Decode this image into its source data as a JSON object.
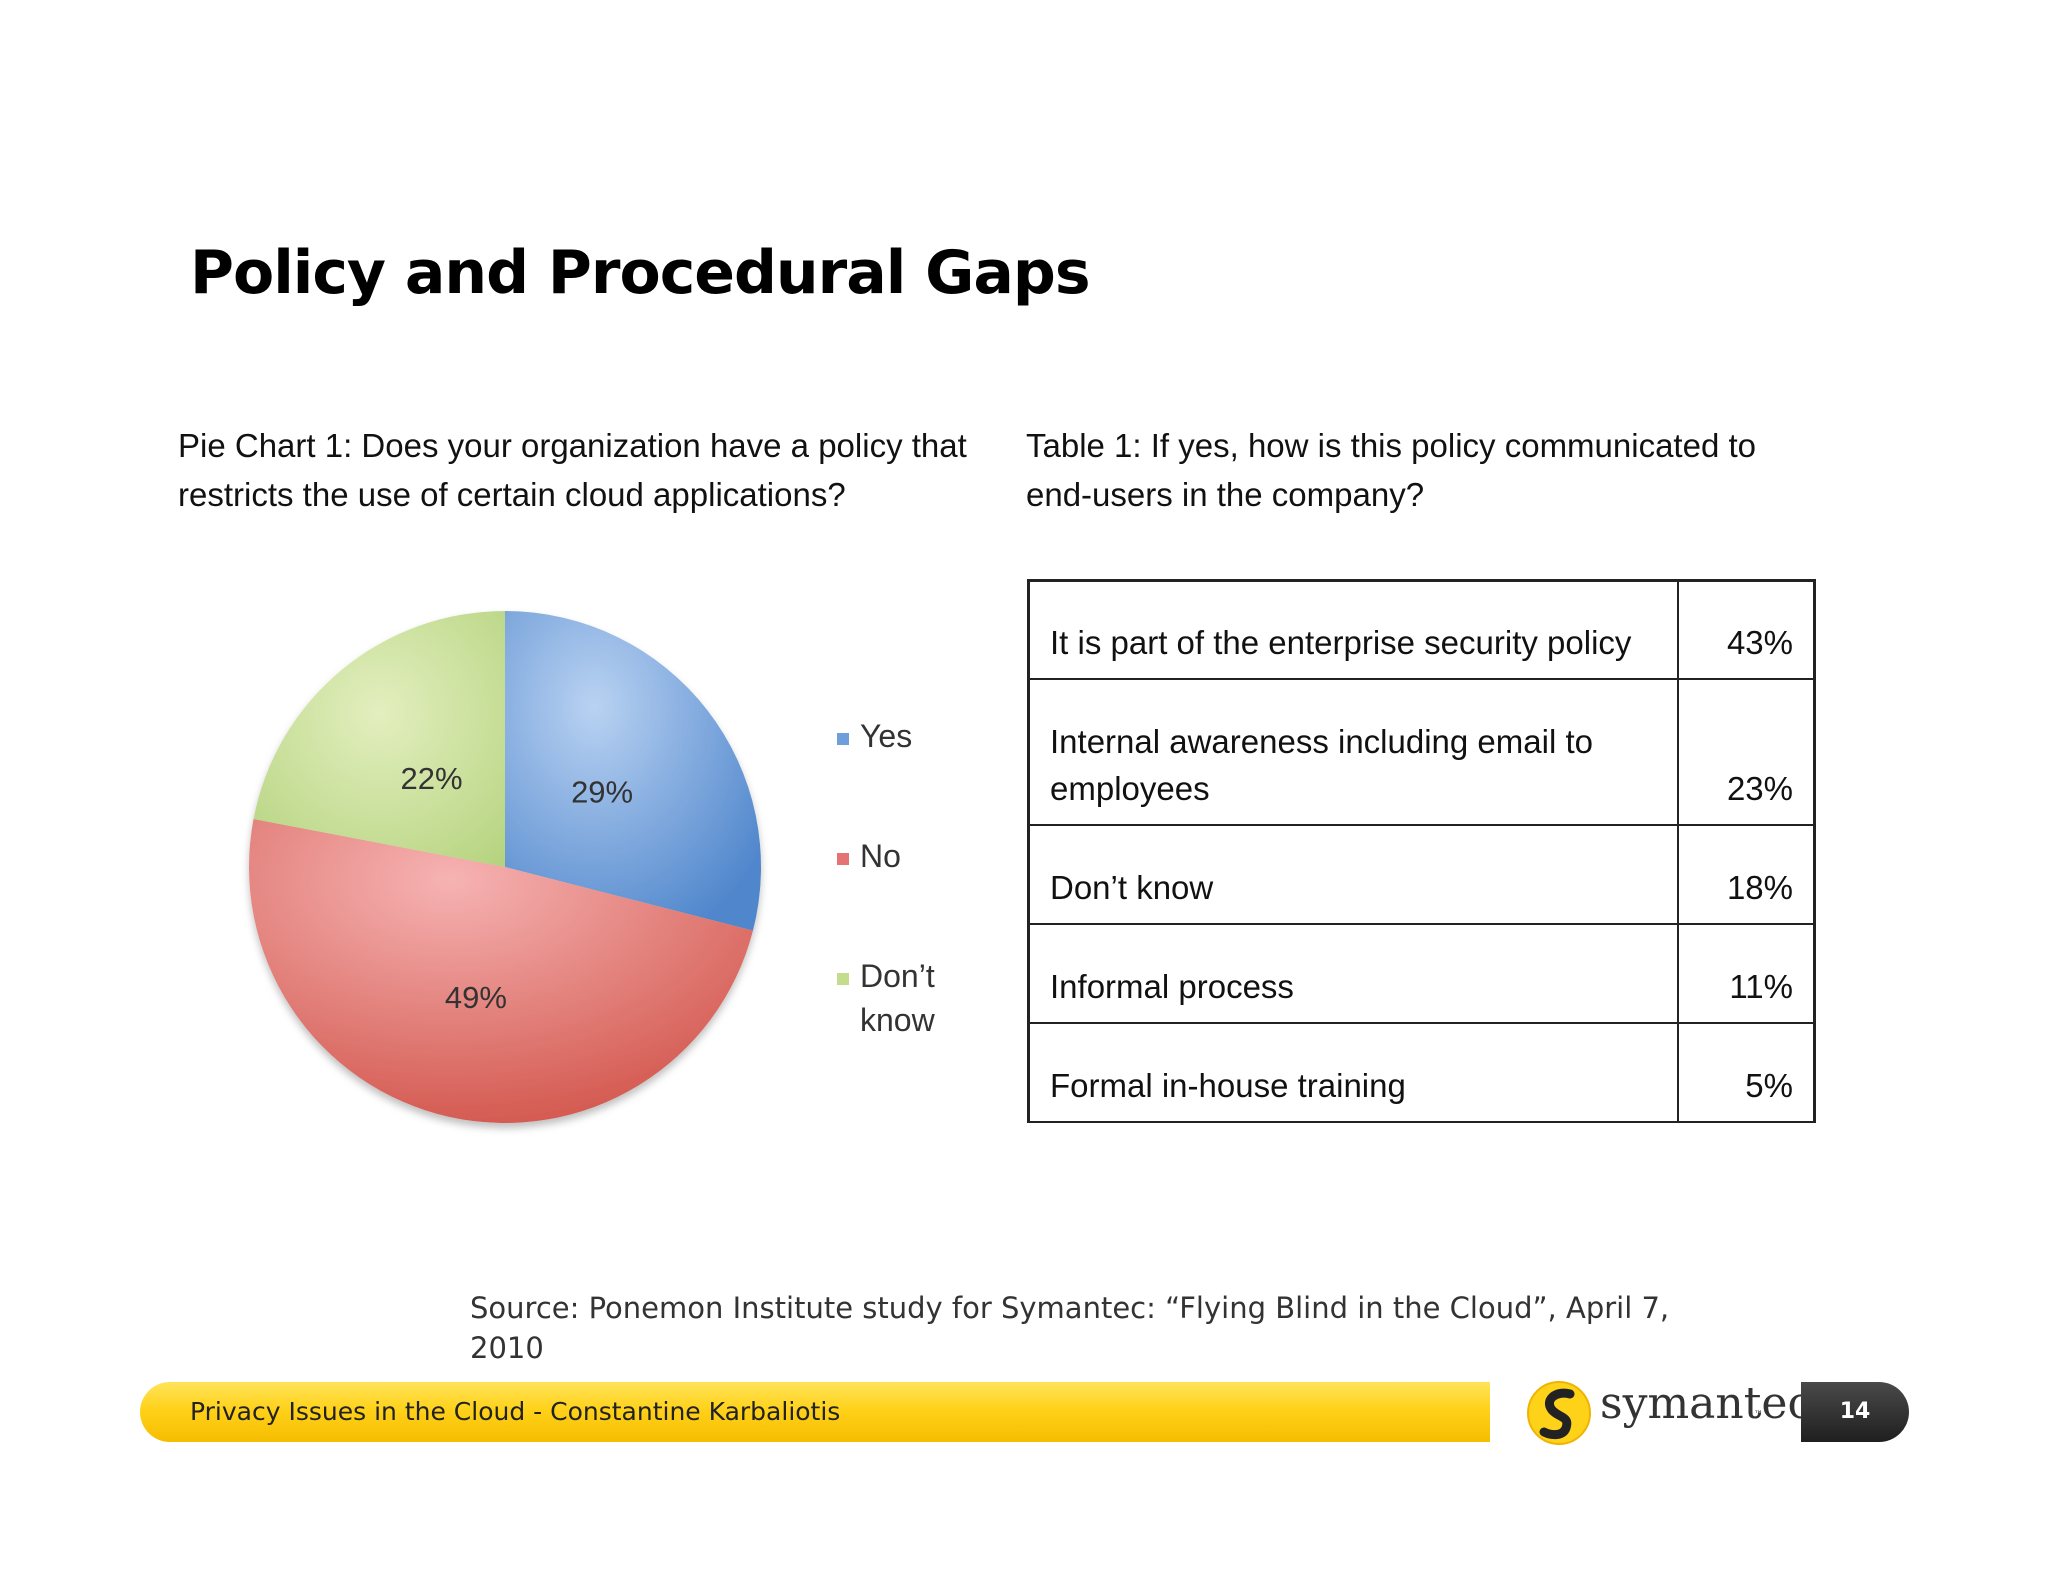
{
  "slide": {
    "title": "Policy and Procedural Gaps",
    "source_note": "Source: Ponemon Institute study for Symantec: “Flying Blind in the Cloud”, April 7, 2010",
    "footer_text": "Privacy Issues in the Cloud - Constantine Karbaliotis",
    "logo_text": "symantec.",
    "logo_tm": "™",
    "page_number": "14"
  },
  "pie": {
    "caption": "Pie Chart 1: Does your organization have a policy that restricts the use of certain cloud applications?"
  },
  "table": {
    "caption": "Table 1: If yes, how is this policy communicated to end-users in the company?",
    "rows": [
      {
        "label": "It is part of the enterprise security policy",
        "value": "43%"
      },
      {
        "label": "Internal awareness including email to employees",
        "value": "23%"
      },
      {
        "label": "Don’t know",
        "value": "18%"
      },
      {
        "label": "Informal process",
        "value": "11%"
      },
      {
        "label": "Formal in-house training",
        "value": "5%"
      }
    ]
  },
  "colors": {
    "yes": "#6e9fdb",
    "no": "#e57373",
    "dont_know": "#c3dd8c",
    "footer_yellow": "#ffd21a",
    "page_pill": "#2b2b2b"
  },
  "chart_data": [
    {
      "type": "pie",
      "title": "Pie Chart 1: Does your organization have a policy that restricts the use of certain cloud applications?",
      "categories": [
        "Yes",
        "No",
        "Don’t know"
      ],
      "values": [
        29,
        49,
        22
      ],
      "labels": [
        "29%",
        "49%",
        "22%"
      ],
      "legend": [
        "Yes",
        "No",
        "Don’t know"
      ],
      "legend_position": "right"
    },
    {
      "type": "table",
      "title": "Table 1: If yes, how is this policy communicated to end-users in the company?",
      "categories": [
        "It is part of the enterprise security policy",
        "Internal awareness including email to employees",
        "Don’t know",
        "Informal process",
        "Formal in-house training"
      ],
      "values": [
        43,
        23,
        18,
        11,
        5
      ]
    }
  ]
}
